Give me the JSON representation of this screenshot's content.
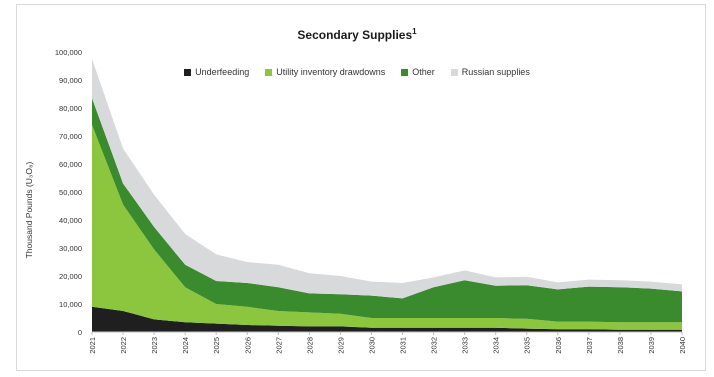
{
  "chart_data": {
    "type": "area",
    "stacked": true,
    "title": "Secondary Supplies",
    "title_superscript": "1",
    "ylabel": "Thousand Pounds (U₃O₈)",
    "xlabel": "",
    "x": [
      "2021",
      "2022",
      "2023",
      "2024",
      "2025",
      "2026",
      "2027",
      "2028",
      "2029",
      "2030",
      "2031",
      "2032",
      "2033",
      "2034",
      "2035",
      "2036",
      "2037",
      "2038",
      "2039",
      "2040"
    ],
    "ylim": [
      0,
      100000
    ],
    "yticks": [
      "0",
      "10,000",
      "20,000",
      "30,000",
      "40,000",
      "50,000",
      "60,000",
      "70,000",
      "80,000",
      "90,000",
      "100,000"
    ],
    "ytick_values": [
      0,
      10000,
      20000,
      30000,
      40000,
      50000,
      60000,
      70000,
      80000,
      90000,
      100000
    ],
    "legend_position": "top",
    "series": [
      {
        "name": "Underfeeding",
        "color": "#1f1f1f",
        "values": [
          9000,
          7500,
          4500,
          3500,
          3000,
          2500,
          2200,
          2000,
          2000,
          1500,
          1500,
          1500,
          1500,
          1500,
          1200,
          1000,
          1000,
          800,
          800,
          800
        ]
      },
      {
        "name": "Utility inventory drawdowns",
        "color": "#8cc63f",
        "values": [
          65000,
          38000,
          25000,
          12500,
          7000,
          6500,
          5300,
          5000,
          4500,
          3500,
          3500,
          3500,
          3500,
          3500,
          3500,
          2700,
          2700,
          2700,
          2700,
          2700
        ]
      },
      {
        "name": "Other",
        "color": "#3a8a2e",
        "values": [
          9500,
          7500,
          8000,
          8000,
          8200,
          8500,
          8500,
          6800,
          7000,
          8000,
          7000,
          11000,
          13500,
          11500,
          12000,
          11500,
          12500,
          12500,
          12000,
          11000
        ]
      },
      {
        "name": "Russian supplies",
        "color": "#d7d9db",
        "values": [
          14000,
          12500,
          11500,
          11000,
          9500,
          7500,
          8000,
          7200,
          6500,
          5000,
          5500,
          3500,
          3500,
          3000,
          3000,
          2500,
          2500,
          2500,
          2500,
          2500
        ]
      }
    ]
  }
}
